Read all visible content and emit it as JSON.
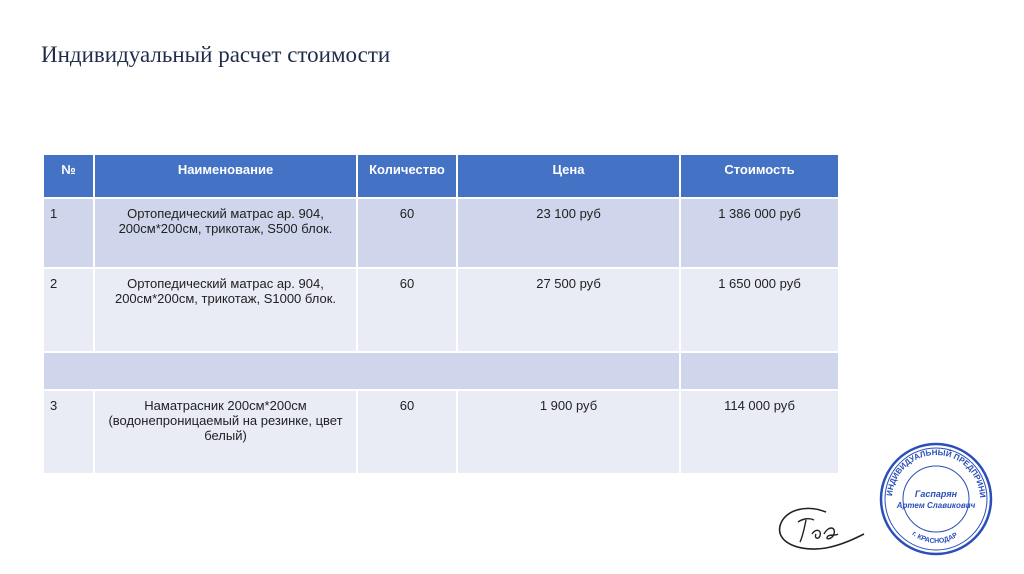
{
  "title": "Индивидуальный расчет стоимости",
  "table": {
    "headers": [
      "№",
      "Наименование",
      "Количество",
      "Цена",
      "Стоимость"
    ],
    "rows": [
      {
        "num": "1",
        "name": "Ортопедический матрас ар. 904, 200см*200см, трикотаж, S500 блок.",
        "qty": "60",
        "price": "23 100 руб",
        "total": "1 386 000 руб"
      },
      {
        "num": "2",
        "name": "Ортопедический матрас ар. 904, 200см*200см, трикотаж, S1000 блок.",
        "qty": "60",
        "price": "27 500 руб",
        "total": "1 650 000 руб"
      },
      {
        "num": "3",
        "name": "Наматрасник 200см*200см (водонепроницаемый на резинке, цвет белый)",
        "qty": "60",
        "price": "1 900 руб",
        "total": "114 000 руб"
      }
    ]
  },
  "stamp": {
    "outer_text": "ИНДИВИДУАЛЬНЫЙ ПРЕДПРИНИМАТЕЛЬ",
    "name_line1": "Гаспарян",
    "name_line2": "Артем Славикович",
    "city": "г. КРАСНОДАР",
    "color": "#2a4fb8"
  },
  "signature": {
    "text": "Гас"
  },
  "colors": {
    "header": "#4472c4",
    "row_dark": "#cfd5ea",
    "row_light": "#e9ebf5"
  }
}
